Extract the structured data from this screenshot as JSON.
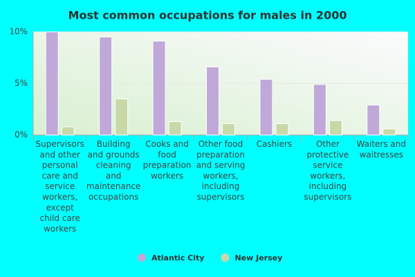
{
  "chart_data": {
    "type": "bar",
    "title": "Most common occupations for males in 2000",
    "categories": [
      "Supervisors and other personal care and service workers, except child care workers",
      "Building and grounds cleaning and maintenance occupations",
      "Cooks and food preparation workers",
      "Other food preparation and serving workers, including supervisors",
      "Cashiers",
      "Other protective service workers, including supervisors",
      "Waiters and waitresses"
    ],
    "series": [
      {
        "name": "Atlantic City",
        "color": "#c0a8d8",
        "values": [
          10.0,
          9.5,
          9.1,
          6.6,
          5.4,
          4.9,
          2.9
        ]
      },
      {
        "name": "New Jersey",
        "color": "#c8d8a8",
        "values": [
          0.8,
          3.5,
          1.3,
          1.1,
          1.1,
          1.4,
          0.6
        ]
      }
    ],
    "ylim": [
      0,
      10
    ],
    "yticks": [
      {
        "value": 0,
        "label": "0%"
      },
      {
        "value": 5,
        "label": "5%"
      },
      {
        "value": 10,
        "label": "10%"
      }
    ],
    "grid": true
  }
}
